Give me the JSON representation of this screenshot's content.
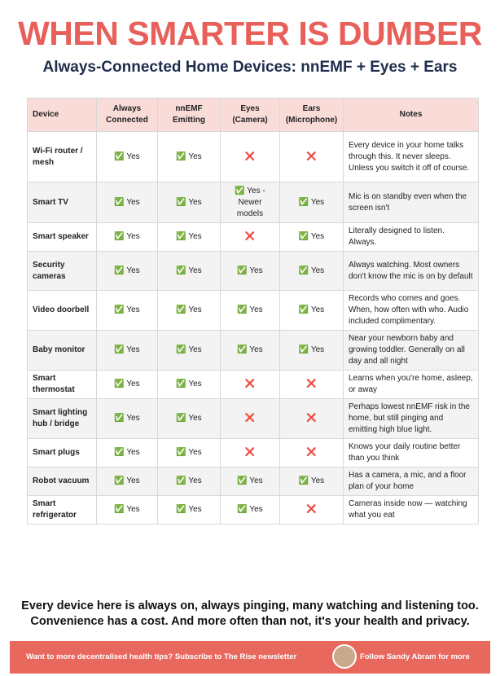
{
  "header": {
    "title": "WHEN SMARTER IS DUMBER",
    "subtitle": "Always-Connected Home Devices: nnEMF + Eyes + Ears"
  },
  "table": {
    "columns": [
      "Device",
      "Always Connected",
      "nnEMF Emitting",
      "Eyes (Camera)",
      "Ears (Microphone)",
      "Notes"
    ],
    "rows": [
      [
        "Wi-Fi router / mesh",
        "✅ Yes",
        "✅ Yes",
        "❌",
        "❌",
        "Every device in your home talks through this. It never sleeps. Unless you switch it off of course."
      ],
      [
        "Smart TV",
        "✅ Yes",
        "✅ Yes",
        "✅ Yes - Newer models",
        "✅ Yes",
        "Mic is on standby even when the screen isn't"
      ],
      [
        "Smart speaker",
        "✅ Yes",
        "✅ Yes",
        "❌",
        "✅ Yes",
        "Literally designed to listen. Always."
      ],
      [
        "Security cameras",
        "✅ Yes",
        "✅ Yes",
        "✅ Yes",
        "✅ Yes",
        "Always watching. Most owners don't know the mic is on by default"
      ],
      [
        "Video doorbell",
        "✅ Yes",
        "✅ Yes",
        "✅ Yes",
        "✅ Yes",
        "Records who comes and goes. When, how often with who. Audio included complimentary."
      ],
      [
        "Baby monitor",
        "✅ Yes",
        "✅ Yes",
        "✅ Yes",
        "✅ Yes",
        "Near your newborn baby and growing toddler. Generally on all day and all night"
      ],
      [
        "Smart thermostat",
        "✅ Yes",
        "✅ Yes",
        "❌",
        "❌",
        "Learns when you're home, asleep, or away"
      ],
      [
        "Smart lighting hub / bridge",
        "✅ Yes",
        "✅ Yes",
        "❌",
        "❌",
        "Perhaps lowest nnEMF risk in the home, but still pinging and emitting high blue light."
      ],
      [
        "Smart plugs",
        "✅ Yes",
        "✅ Yes",
        "❌",
        "❌",
        "Knows your daily routine better than you think"
      ],
      [
        "Robot vacuum",
        "✅ Yes",
        "✅ Yes",
        "✅ Yes",
        "✅ Yes",
        "Has a camera, a mic, and a floor plan of your home"
      ],
      [
        "Smart refrigerator",
        "✅ Yes",
        "✅ Yes",
        "✅ Yes",
        "❌",
        "Cameras inside now — watching what you eat"
      ]
    ]
  },
  "closing": [
    "Every device here is always on, always pinging, many watching and listening too.",
    "Convenience has a cost. And more often than not, it's your health and privacy."
  ],
  "footer": {
    "left": "Want to more decentralised health tips? Subscribe to The Rise newsletter",
    "right": "Follow Sandy Abram for more"
  }
}
